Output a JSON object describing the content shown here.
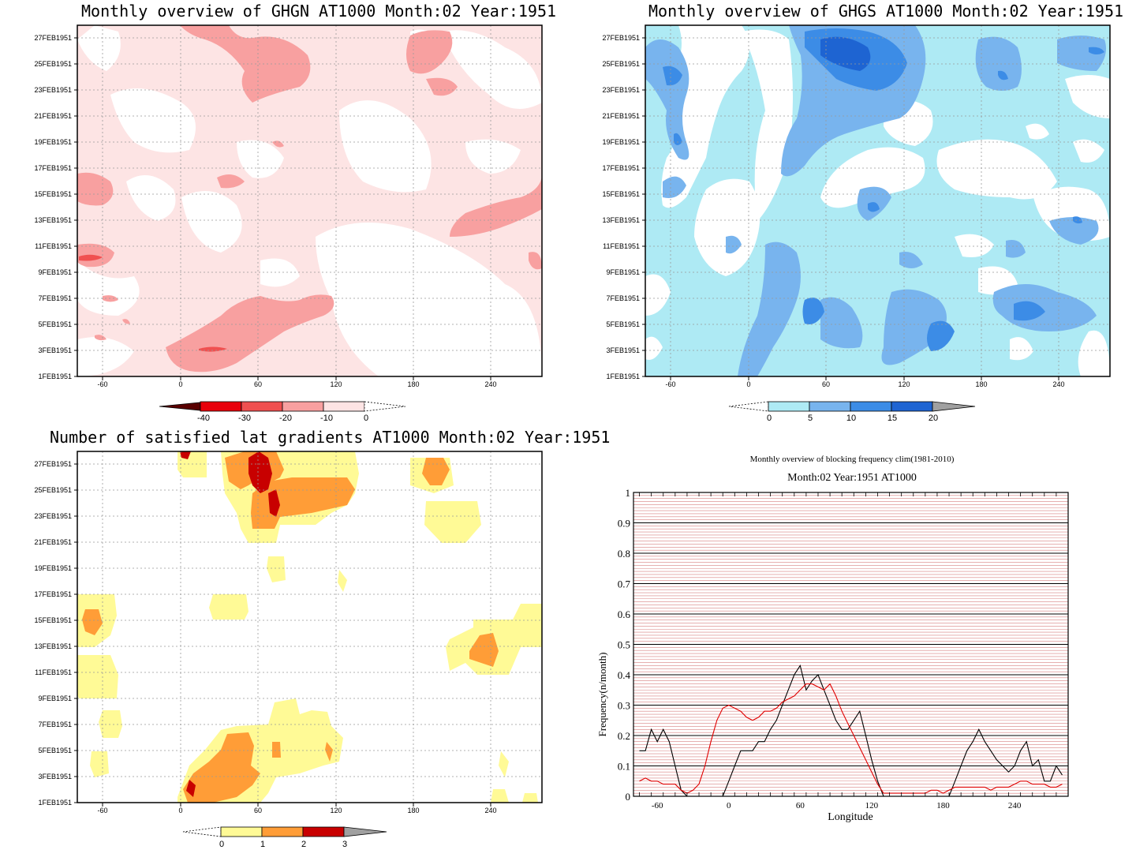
{
  "panels": {
    "ghgn": {
      "title": "Monthly overview of GHGN AT1000  Month:02  Year:1951",
      "colorbar_labels": [
        "-40",
        "-30",
        "-20",
        "-10",
        "0"
      ],
      "colorbar_colors": [
        "#5a0000",
        "#e8000b",
        "#f05050",
        "#f8a0a0",
        "#fde4e4"
      ]
    },
    "ghgs": {
      "title": "Monthly overview of GHGS AT1000  Month:02  Year:1951",
      "colorbar_labels": [
        "0",
        "5",
        "10",
        "15",
        "20"
      ],
      "colorbar_colors": [
        "#aeeaf4",
        "#78b4ee",
        "#3c8ce6",
        "#1e64d2",
        "#a0a0a0"
      ]
    },
    "lat": {
      "title": "Number of satisfied lat gradients AT1000  Month:02  Year:1951",
      "colorbar_labels": [
        "0",
        "1",
        "2",
        "3"
      ],
      "colorbar_colors": [
        "#fffa96",
        "#ff9d37",
        "#c80000",
        "#a0a0a0"
      ]
    },
    "freq": {
      "title_line1": "Monthly overview of blocking frequency clim(1981-2010)",
      "title_line2": "Month:02  Year:1951   AT1000",
      "ylabel": "Frequency(n/month)",
      "xlabel": "Longitude"
    }
  },
  "date_ticks": [
    "1FEB1951",
    "3FEB1951",
    "5FEB1951",
    "7FEB1951",
    "9FEB1951",
    "11FEB1951",
    "13FEB1951",
    "15FEB1951",
    "17FEB1951",
    "19FEB1951",
    "21FEB1951",
    "23FEB1951",
    "25FEB1951",
    "27FEB1951"
  ],
  "lon_ticks": [
    "-60",
    "0",
    "60",
    "120",
    "180",
    "240"
  ],
  "chart_data": {
    "type": "line",
    "x": [
      -75,
      -70,
      -65,
      -60,
      -55,
      -50,
      -45,
      -40,
      -35,
      -30,
      -25,
      -20,
      -15,
      -10,
      -5,
      0,
      5,
      10,
      15,
      20,
      25,
      30,
      35,
      40,
      45,
      50,
      55,
      60,
      65,
      70,
      75,
      80,
      85,
      90,
      95,
      100,
      105,
      110,
      115,
      120,
      125,
      130,
      135,
      140,
      145,
      150,
      155,
      160,
      165,
      170,
      175,
      180,
      185,
      190,
      195,
      200,
      205,
      210,
      215,
      220,
      225,
      230,
      235,
      240,
      245,
      250,
      255,
      260,
      265,
      270,
      275,
      280
    ],
    "series": [
      {
        "color": "#000000",
        "values": [
          0.15,
          0.15,
          0.22,
          0.18,
          0.22,
          0.18,
          0.1,
          0.02,
          0.0,
          0.0,
          0.0,
          0.0,
          0.0,
          0.0,
          0.0,
          0.05,
          0.1,
          0.15,
          0.15,
          0.15,
          0.18,
          0.18,
          0.22,
          0.25,
          0.3,
          0.35,
          0.4,
          0.43,
          0.35,
          0.38,
          0.4,
          0.35,
          0.3,
          0.25,
          0.22,
          0.22,
          0.25,
          0.28,
          0.2,
          0.12,
          0.05,
          0.0,
          0.0,
          0.0,
          0.0,
          0.0,
          0.0,
          0.0,
          0.0,
          0.0,
          0.0,
          0.0,
          0.0,
          0.05,
          0.1,
          0.15,
          0.18,
          0.22,
          0.18,
          0.15,
          0.12,
          0.1,
          0.08,
          0.1,
          0.15,
          0.18,
          0.1,
          0.12,
          0.05,
          0.05,
          0.1,
          0.07
        ]
      },
      {
        "color": "#e00000",
        "values": [
          0.05,
          0.06,
          0.05,
          0.05,
          0.04,
          0.04,
          0.04,
          0.02,
          0.01,
          0.02,
          0.04,
          0.1,
          0.18,
          0.25,
          0.29,
          0.3,
          0.29,
          0.28,
          0.26,
          0.25,
          0.26,
          0.28,
          0.28,
          0.29,
          0.31,
          0.32,
          0.33,
          0.35,
          0.37,
          0.37,
          0.36,
          0.35,
          0.37,
          0.33,
          0.28,
          0.24,
          0.2,
          0.16,
          0.12,
          0.08,
          0.04,
          0.01,
          0.01,
          0.01,
          0.01,
          0.01,
          0.01,
          0.01,
          0.01,
          0.02,
          0.02,
          0.01,
          0.02,
          0.03,
          0.03,
          0.03,
          0.03,
          0.03,
          0.03,
          0.02,
          0.03,
          0.03,
          0.03,
          0.04,
          0.05,
          0.05,
          0.04,
          0.04,
          0.04,
          0.03,
          0.03,
          0.04
        ]
      }
    ],
    "title": "Monthly overview of blocking frequency clim(1981-2010)",
    "xlabel": "Longitude",
    "ylabel": "Frequency(n/month)",
    "xlim": [
      -80,
      285
    ],
    "ylim": [
      0,
      1
    ],
    "yticks": [
      0,
      0.1,
      0.2,
      0.3,
      0.4,
      0.5,
      0.6,
      0.7,
      0.8,
      0.9,
      1
    ]
  }
}
